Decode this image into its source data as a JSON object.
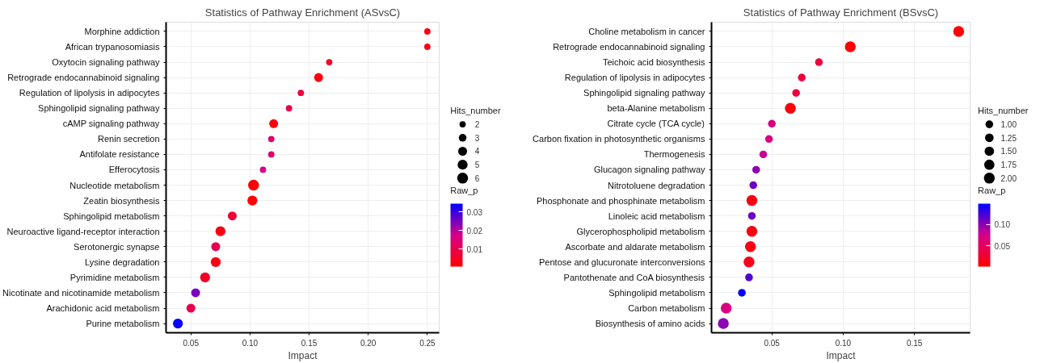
{
  "chart_data": [
    {
      "type": "bubble",
      "orientation": "horizontal",
      "title": "Statistics of Pathway Enrichment (ASvsC)",
      "xlabel": "Impact",
      "legend_title": "Hits_number",
      "clabel": "Raw_p",
      "grid": true,
      "categories": [
        "Morphine addiction",
        "African trypanosomiasis",
        "Oxytocin signaling pathway",
        "Retrograde endocannabinoid signaling",
        "Regulation of lipolysis in adipocytes",
        "Sphingolipid signaling pathway",
        "cAMP signaling pathway",
        "Renin secretion",
        "Antifolate resistance",
        "Efferocytosis",
        "Nucleotide metabolism",
        "Zeatin biosynthesis",
        "Sphingolipid metabolism",
        "Neuroactive ligand-receptor interaction",
        "Serotonergic synapse",
        "Lysine degradation",
        "Pyrimidine metabolism",
        "Nicotinate and nicotinamide metabolism",
        "Arachidonic acid metabolism",
        "Purine metabolism"
      ],
      "values": [
        0.25,
        0.25,
        0.167,
        0.158,
        0.143,
        0.133,
        0.12,
        0.118,
        0.118,
        0.111,
        0.103,
        0.102,
        0.085,
        0.075,
        0.071,
        0.071,
        0.062,
        0.054,
        0.05,
        0.039
      ],
      "sizes": [
        2,
        2,
        2,
        4,
        2,
        2,
        4,
        2,
        2,
        2,
        6,
        5,
        4,
        5,
        4,
        5,
        5,
        4,
        4,
        5
      ],
      "cvalues": [
        0.003,
        0.003,
        0.006,
        0.002,
        0.008,
        0.009,
        0.002,
        0.014,
        0.014,
        0.017,
        0.001,
        0.001,
        0.007,
        0.003,
        0.01,
        0.003,
        0.005,
        0.025,
        0.01,
        0.034
      ],
      "size_legend": [
        2,
        3,
        4,
        5,
        6
      ],
      "clim": [
        0.0005,
        0.0345
      ],
      "cticks": [
        0.01,
        0.02,
        0.03
      ],
      "xlim": [
        0.029,
        0.26
      ],
      "xticks": [
        {
          "value": 0.05,
          "label": "0.05"
        },
        {
          "value": 0.1,
          "label": "0.10"
        },
        {
          "value": 0.15,
          "label": "0.15"
        },
        {
          "value": 0.2,
          "label": "0.20"
        },
        {
          "value": 0.25,
          "label": "0.25"
        }
      ]
    },
    {
      "type": "bubble",
      "orientation": "horizontal",
      "title": "Statistics of Pathway Enrichment (BSvsC)",
      "xlabel": "Impact",
      "legend_title": "Hits_number",
      "clabel": "Raw_p",
      "grid": true,
      "categories": [
        "Choline metabolism in cancer",
        "Retrograde endocannabinoid signaling",
        "Teichoic acid biosynthesis",
        "Regulation of lipolysis in adipocytes",
        "Sphingolipid signaling pathway",
        "beta-Alanine metabolism",
        "Citrate cycle (TCA cycle)",
        "Carbon fixation in photosynthetic organisms",
        "Thermogenesis",
        "Glucagon signaling pathway",
        "Nitrotoluene degradation",
        "Phosphonate and phosphinate metabolism",
        "Linoleic acid metabolism",
        "Glycerophospholipid metabolism",
        "Ascorbate and aldarate metabolism",
        "Pentose and glucuronate interconversions",
        "Pantothenate and CoA biosynthesis",
        "Sphingolipid metabolism",
        "Carbon metabolism",
        "Biosynthesis of amino acids"
      ],
      "values": [
        0.181,
        0.105,
        0.083,
        0.071,
        0.067,
        0.063,
        0.05,
        0.048,
        0.044,
        0.039,
        0.037,
        0.036,
        0.036,
        0.036,
        0.035,
        0.034,
        0.034,
        0.029,
        0.018,
        0.016
      ],
      "sizes": [
        2,
        2,
        1,
        1,
        1,
        2,
        1,
        1,
        1,
        1,
        1,
        2,
        1,
        2,
        2,
        2,
        1,
        1,
        2,
        2
      ],
      "cvalues": [
        0.003,
        0.005,
        0.035,
        0.035,
        0.035,
        0.008,
        0.07,
        0.07,
        0.08,
        0.1,
        0.11,
        0.01,
        0.11,
        0.01,
        0.012,
        0.015,
        0.12,
        0.147,
        0.07,
        0.1
      ],
      "size_legend": [
        {
          "value": 1,
          "label": "1.00"
        },
        {
          "value": 1.25,
          "label": "1.25"
        },
        {
          "value": 1.5,
          "label": "1.50"
        },
        {
          "value": 1.75,
          "label": "1.75"
        },
        {
          "value": 2,
          "label": "2.00"
        }
      ],
      "clim": [
        0.002,
        0.148
      ],
      "cticks": [
        {
          "value": 0.05,
          "label": "0.05"
        },
        {
          "value": 0.1,
          "label": "0.10"
        }
      ],
      "xlim": [
        0.0077,
        0.189
      ],
      "xticks": [
        {
          "value": 0.05,
          "label": "0.05"
        },
        {
          "value": 0.1,
          "label": "0.10"
        },
        {
          "value": 0.15,
          "label": "0.15"
        }
      ]
    }
  ]
}
